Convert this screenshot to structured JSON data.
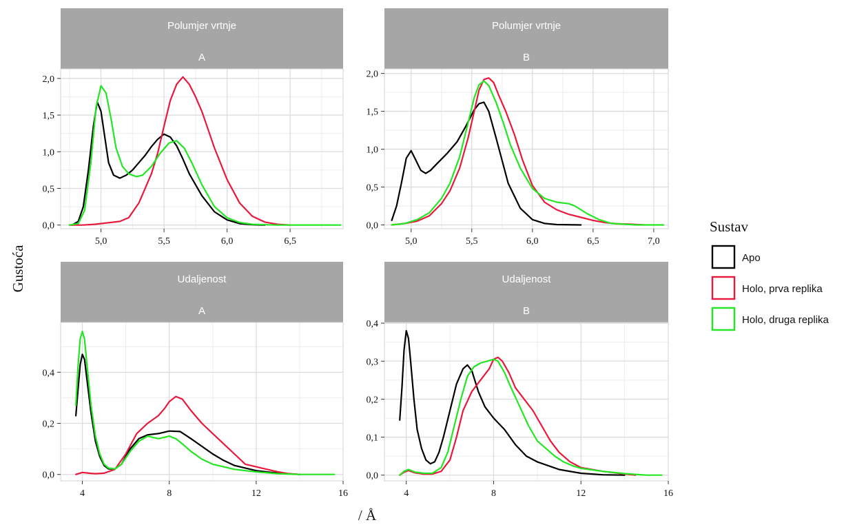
{
  "chart_data": {
    "type": "line",
    "y_axis_title": "Gustoća",
    "x_axis_title": "/ Å",
    "legend": {
      "title": "Sustav",
      "placement": "right",
      "items": [
        {
          "label": "Apo",
          "color": "#000000"
        },
        {
          "label": "Holo, prva replika",
          "color": "#e8183c"
        },
        {
          "label": "Holo, druga replika",
          "color": "#22e622"
        }
      ]
    },
    "panels": [
      {
        "strip_top": "Polumjer vrtnje",
        "strip_bottom": "A",
        "xlim": [
          4.68,
          6.92
        ],
        "ylim": [
          -0.05,
          2.13
        ],
        "x_ticks": [
          {
            "v": 5.0,
            "label": "5,0"
          },
          {
            "v": 5.5,
            "label": "5,5"
          },
          {
            "v": 6.0,
            "label": "6,0"
          },
          {
            "v": 6.5,
            "label": "6,5"
          }
        ],
        "y_ticks": [
          {
            "v": 0,
            "label": "0,0"
          },
          {
            "v": 0.5,
            "label": "0,5"
          },
          {
            "v": 1.0,
            "label": "1,0"
          },
          {
            "v": 1.5,
            "label": "1,5"
          },
          {
            "v": 2.0,
            "label": "2,0"
          }
        ],
        "series": [
          {
            "name": "Apo",
            "x": [
              4.77,
              4.82,
              4.86,
              4.9,
              4.94,
              4.97,
              5.0,
              5.03,
              5.06,
              5.1,
              5.15,
              5.2,
              5.25,
              5.3,
              5.35,
              5.4,
              5.45,
              5.5,
              5.55,
              5.6,
              5.65,
              5.7,
              5.8,
              5.9,
              6.0,
              6.1,
              6.2,
              6.3
            ],
            "y": [
              0.0,
              0.05,
              0.25,
              0.75,
              1.35,
              1.68,
              1.55,
              1.2,
              0.85,
              0.68,
              0.64,
              0.68,
              0.75,
              0.85,
              0.95,
              1.07,
              1.17,
              1.24,
              1.2,
              1.08,
              0.9,
              0.7,
              0.4,
              0.18,
              0.07,
              0.02,
              0.005,
              0.0
            ]
          },
          {
            "name": "Holo, prva replika",
            "x": [
              4.75,
              4.85,
              4.95,
              5.05,
              5.15,
              5.22,
              5.3,
              5.4,
              5.45,
              5.5,
              5.55,
              5.6,
              5.65,
              5.7,
              5.75,
              5.8,
              5.85,
              5.9,
              6.0,
              6.1,
              6.2,
              6.3,
              6.4,
              6.5
            ],
            "y": [
              0.0,
              0.0,
              0.01,
              0.03,
              0.05,
              0.1,
              0.3,
              0.7,
              0.98,
              1.35,
              1.7,
              1.92,
              2.02,
              1.92,
              1.75,
              1.55,
              1.3,
              1.05,
              0.62,
              0.3,
              0.12,
              0.04,
              0.01,
              0.0
            ]
          },
          {
            "name": "Holo, druga replika",
            "x": [
              4.75,
              4.82,
              4.87,
              4.92,
              4.96,
              5.0,
              5.04,
              5.08,
              5.12,
              5.17,
              5.22,
              5.28,
              5.33,
              5.4,
              5.47,
              5.54,
              5.6,
              5.66,
              5.72,
              5.8,
              5.9,
              6.0,
              6.1,
              6.2,
              6.4,
              6.6,
              6.8,
              6.9
            ],
            "y": [
              0.0,
              0.02,
              0.2,
              0.85,
              1.6,
              1.9,
              1.8,
              1.45,
              1.05,
              0.8,
              0.7,
              0.66,
              0.68,
              0.8,
              0.98,
              1.12,
              1.15,
              1.05,
              0.85,
              0.55,
              0.25,
              0.1,
              0.035,
              0.01,
              0.0,
              0.0,
              0.0,
              0.0
            ]
          }
        ]
      },
      {
        "strip_top": "Polumjer vrtnje",
        "strip_bottom": "B",
        "xlim": [
          4.78,
          7.12
        ],
        "ylim": [
          -0.05,
          2.06
        ],
        "x_ticks": [
          {
            "v": 5.0,
            "label": "5,0"
          },
          {
            "v": 5.5,
            "label": "5,5"
          },
          {
            "v": 6.0,
            "label": "6,0"
          },
          {
            "v": 6.5,
            "label": "6,5"
          },
          {
            "v": 7.0,
            "label": "7,0"
          }
        ],
        "y_ticks": [
          {
            "v": 0,
            "label": "0,0"
          },
          {
            "v": 0.5,
            "label": "0,5"
          },
          {
            "v": 1.0,
            "label": "1,0"
          },
          {
            "v": 1.5,
            "label": "1,5"
          },
          {
            "v": 2.0,
            "label": "2,0"
          }
        ],
        "series": [
          {
            "name": "Apo",
            "x": [
              4.84,
              4.88,
              4.92,
              4.96,
              5.0,
              5.04,
              5.08,
              5.12,
              5.16,
              5.22,
              5.3,
              5.38,
              5.45,
              5.52,
              5.56,
              5.6,
              5.64,
              5.7,
              5.75,
              5.8,
              5.9,
              6.0,
              6.1,
              6.2,
              6.4
            ],
            "y": [
              0.06,
              0.25,
              0.55,
              0.88,
              0.98,
              0.85,
              0.72,
              0.68,
              0.72,
              0.82,
              0.95,
              1.1,
              1.3,
              1.52,
              1.6,
              1.62,
              1.5,
              1.15,
              0.85,
              0.55,
              0.22,
              0.07,
              0.02,
              0.005,
              0.0
            ]
          },
          {
            "name": "Holo, prva replika",
            "x": [
              4.84,
              4.95,
              5.05,
              5.15,
              5.25,
              5.32,
              5.4,
              5.47,
              5.52,
              5.56,
              5.6,
              5.64,
              5.68,
              5.72,
              5.78,
              5.85,
              5.92,
              6.0,
              6.1,
              6.2,
              6.3,
              6.4,
              6.5,
              6.6,
              6.7,
              6.8,
              6.92
            ],
            "y": [
              0.0,
              0.02,
              0.05,
              0.12,
              0.28,
              0.45,
              0.75,
              1.15,
              1.5,
              1.78,
              1.92,
              1.94,
              1.88,
              1.72,
              1.5,
              1.2,
              0.85,
              0.52,
              0.3,
              0.2,
              0.14,
              0.1,
              0.06,
              0.03,
              0.015,
              0.01,
              0.0
            ]
          },
          {
            "name": "Holo, druga replika",
            "x": [
              4.84,
              4.95,
              5.05,
              5.15,
              5.25,
              5.32,
              5.4,
              5.47,
              5.52,
              5.56,
              5.6,
              5.64,
              5.7,
              5.76,
              5.82,
              5.9,
              6.0,
              6.1,
              6.2,
              6.3,
              6.35,
              6.45,
              6.55,
              6.65,
              6.75,
              6.85,
              7.0,
              7.08
            ],
            "y": [
              0.0,
              0.02,
              0.07,
              0.16,
              0.35,
              0.55,
              0.9,
              1.35,
              1.68,
              1.85,
              1.9,
              1.84,
              1.62,
              1.35,
              1.05,
              0.75,
              0.48,
              0.35,
              0.3,
              0.28,
              0.25,
              0.15,
              0.07,
              0.02,
              0.01,
              0.0,
              0.0,
              0.0
            ]
          }
        ]
      },
      {
        "strip_top": "Udaljenost",
        "strip_bottom": "A",
        "xlim": [
          3.0,
          16.0
        ],
        "ylim": [
          -0.025,
          0.595
        ],
        "x_ticks": [
          {
            "v": 4,
            "label": "4"
          },
          {
            "v": 8,
            "label": "8"
          },
          {
            "v": 12,
            "label": "12"
          },
          {
            "v": 16,
            "label": "16"
          }
        ],
        "y_ticks": [
          {
            "v": 0,
            "label": "0,0"
          },
          {
            "v": 0.2,
            "label": "0,2"
          },
          {
            "v": 0.4,
            "label": "0,4"
          }
        ],
        "series": [
          {
            "name": "Apo",
            "x": [
              3.7,
              3.8,
              3.9,
              4.0,
              4.1,
              4.2,
              4.4,
              4.6,
              4.8,
              5.0,
              5.2,
              5.5,
              5.8,
              6.2,
              6.6,
              7.0,
              7.5,
              8.0,
              8.5,
              9.0,
              9.5,
              10.0,
              10.5,
              11.0,
              12.0,
              13.0,
              14.0
            ],
            "y": [
              0.23,
              0.33,
              0.43,
              0.47,
              0.45,
              0.38,
              0.24,
              0.13,
              0.07,
              0.035,
              0.022,
              0.022,
              0.04,
              0.1,
              0.14,
              0.155,
              0.16,
              0.17,
              0.168,
              0.14,
              0.11,
              0.08,
              0.055,
              0.035,
              0.015,
              0.005,
              0.0
            ]
          },
          {
            "name": "Holo, prva replika",
            "x": [
              3.7,
              4.0,
              4.3,
              4.6,
              5.0,
              5.5,
              6.0,
              6.5,
              7.0,
              7.5,
              7.8,
              8.0,
              8.3,
              8.6,
              9.0,
              9.5,
              10.0,
              10.5,
              11.0,
              11.5,
              12.0,
              12.5,
              13.0,
              13.5,
              14.0
            ],
            "y": [
              0.0,
              0.008,
              0.005,
              0.003,
              0.005,
              0.02,
              0.08,
              0.16,
              0.2,
              0.23,
              0.26,
              0.285,
              0.305,
              0.295,
              0.25,
              0.2,
              0.16,
              0.12,
              0.08,
              0.04,
              0.03,
              0.02,
              0.01,
              0.003,
              0.0
            ]
          },
          {
            "name": "Holo, druga replika",
            "x": [
              3.7,
              3.8,
              3.9,
              4.0,
              4.1,
              4.2,
              4.4,
              4.6,
              4.8,
              5.0,
              5.2,
              5.5,
              5.8,
              6.2,
              6.6,
              7.0,
              7.5,
              8.0,
              8.3,
              8.6,
              9.0,
              9.5,
              10.0,
              10.5,
              11.0,
              12.0,
              13.0,
              14.0,
              15.0,
              15.6
            ],
            "y": [
              0.27,
              0.42,
              0.53,
              0.56,
              0.53,
              0.44,
              0.27,
              0.15,
              0.08,
              0.04,
              0.025,
              0.022,
              0.04,
              0.09,
              0.13,
              0.15,
              0.14,
              0.15,
              0.14,
              0.12,
              0.09,
              0.06,
              0.04,
              0.03,
              0.02,
              0.01,
              0.003,
              0.0,
              0.0,
              0.0
            ]
          }
        ]
      },
      {
        "strip_top": "Udaljenost",
        "strip_bottom": "B",
        "xlim": [
          3.0,
          16.0
        ],
        "ylim": [
          -0.015,
          0.402
        ],
        "x_ticks": [
          {
            "v": 4,
            "label": "4"
          },
          {
            "v": 8,
            "label": "8"
          },
          {
            "v": 12,
            "label": "12"
          },
          {
            "v": 16,
            "label": "16"
          }
        ],
        "y_ticks": [
          {
            "v": 0,
            "label": "0,0"
          },
          {
            "v": 0.1,
            "label": "0,1"
          },
          {
            "v": 0.2,
            "label": "0,2"
          },
          {
            "v": 0.3,
            "label": "0,3"
          },
          {
            "v": 0.4,
            "label": "0,4"
          }
        ],
        "series": [
          {
            "name": "Apo",
            "x": [
              3.7,
              3.8,
              3.9,
              4.0,
              4.1,
              4.2,
              4.35,
              4.5,
              4.7,
              4.9,
              5.1,
              5.3,
              5.5,
              5.7,
              6.0,
              6.3,
              6.6,
              6.8,
              7.0,
              7.3,
              7.6,
              8.0,
              8.5,
              9.0,
              9.5,
              10.0,
              11.0,
              12.0,
              13.0,
              14.0
            ],
            "y": [
              0.145,
              0.23,
              0.33,
              0.38,
              0.36,
              0.3,
              0.2,
              0.12,
              0.07,
              0.04,
              0.03,
              0.035,
              0.06,
              0.1,
              0.17,
              0.24,
              0.28,
              0.29,
              0.275,
              0.22,
              0.18,
              0.15,
              0.12,
              0.08,
              0.05,
              0.035,
              0.015,
              0.005,
              0.001,
              0.0
            ]
          },
          {
            "name": "Holo, prva replika",
            "x": [
              3.7,
              3.9,
              4.1,
              4.4,
              4.8,
              5.2,
              5.6,
              6.0,
              6.3,
              6.6,
              7.0,
              7.4,
              7.8,
              8.0,
              8.2,
              8.4,
              8.7,
              9.0,
              9.4,
              9.8,
              10.2,
              10.6,
              11.0,
              11.5,
              12.0,
              13.0,
              14.0,
              14.5
            ],
            "y": [
              0.0,
              0.008,
              0.012,
              0.006,
              0.003,
              0.003,
              0.01,
              0.04,
              0.1,
              0.17,
              0.22,
              0.25,
              0.28,
              0.305,
              0.31,
              0.3,
              0.27,
              0.23,
              0.2,
              0.17,
              0.13,
              0.09,
              0.06,
              0.035,
              0.02,
              0.01,
              0.003,
              0.0
            ]
          },
          {
            "name": "Holo, druga replika",
            "x": [
              3.7,
              3.9,
              4.1,
              4.4,
              4.8,
              5.2,
              5.6,
              5.9,
              6.2,
              6.5,
              6.8,
              7.1,
              7.4,
              7.7,
              8.0,
              8.2,
              8.5,
              8.8,
              9.2,
              9.6,
              10.0,
              10.4,
              10.8,
              11.2,
              11.6,
              12.0,
              13.0,
              14.0,
              15.0,
              15.7
            ],
            "y": [
              0.0,
              0.01,
              0.015,
              0.008,
              0.005,
              0.005,
              0.02,
              0.06,
              0.13,
              0.2,
              0.26,
              0.285,
              0.295,
              0.3,
              0.305,
              0.3,
              0.27,
              0.23,
              0.18,
              0.13,
              0.09,
              0.07,
              0.05,
              0.035,
              0.025,
              0.018,
              0.01,
              0.004,
              0.0,
              0.0
            ]
          }
        ]
      }
    ]
  }
}
